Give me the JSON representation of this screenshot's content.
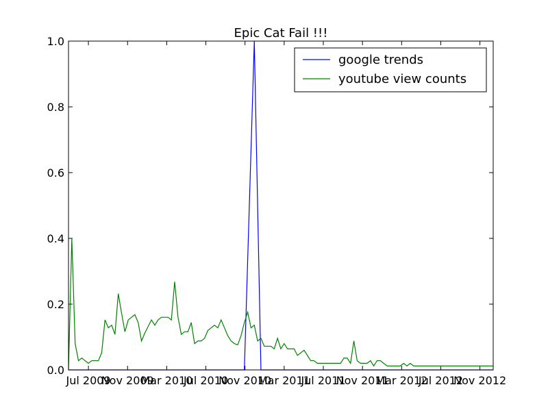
{
  "chart_data": {
    "type": "line",
    "title": "Epic Cat Fail !!!",
    "xlabel": "",
    "ylabel": "",
    "ylim": [
      0,
      1.0
    ],
    "x_ticks": [
      "Jul 2009",
      "Nov 2009",
      "Mar 2010",
      "Jul 2010",
      "Nov 2010",
      "Mar 2011",
      "Jul 2011",
      "Nov 2011",
      "Mar 2012",
      "Jul 2012",
      "Nov 2012"
    ],
    "y_ticks": [
      "0.0",
      "0.2",
      "0.4",
      "0.6",
      "0.8",
      "1.0"
    ],
    "legend_position": "top-right",
    "grid": false,
    "x_domain": [
      0,
      128
    ],
    "series": [
      {
        "name": "google trends",
        "color": "#0000ff",
        "points": [
          [
            0,
            0.0
          ],
          [
            53,
            0.0
          ],
          [
            56,
            1.0
          ],
          [
            58,
            0.0
          ],
          [
            128,
            0.0
          ]
        ]
      },
      {
        "name": "youtube view counts",
        "color": "#008000",
        "points": [
          [
            0,
            0.0
          ],
          [
            1,
            0.4
          ],
          [
            2,
            0.08
          ],
          [
            3,
            0.028
          ],
          [
            4,
            0.036
          ],
          [
            5,
            0.028
          ],
          [
            6,
            0.02
          ],
          [
            7,
            0.028
          ],
          [
            8,
            0.028
          ],
          [
            9,
            0.028
          ],
          [
            10,
            0.052
          ],
          [
            11,
            0.152
          ],
          [
            12,
            0.128
          ],
          [
            13,
            0.136
          ],
          [
            14,
            0.108
          ],
          [
            15,
            0.232
          ],
          [
            16,
            0.172
          ],
          [
            17,
            0.116
          ],
          [
            18,
            0.152
          ],
          [
            19,
            0.16
          ],
          [
            20,
            0.168
          ],
          [
            21,
            0.144
          ],
          [
            22,
            0.088
          ],
          [
            23,
            0.112
          ],
          [
            24,
            0.132
          ],
          [
            25,
            0.152
          ],
          [
            26,
            0.136
          ],
          [
            27,
            0.152
          ],
          [
            28,
            0.16
          ],
          [
            29,
            0.16
          ],
          [
            30,
            0.16
          ],
          [
            31,
            0.152
          ],
          [
            32,
            0.268
          ],
          [
            33,
            0.16
          ],
          [
            34,
            0.108
          ],
          [
            35,
            0.116
          ],
          [
            36,
            0.116
          ],
          [
            37,
            0.144
          ],
          [
            38,
            0.08
          ],
          [
            39,
            0.088
          ],
          [
            40,
            0.088
          ],
          [
            41,
            0.096
          ],
          [
            42,
            0.12
          ],
          [
            43,
            0.128
          ],
          [
            44,
            0.136
          ],
          [
            45,
            0.128
          ],
          [
            46,
            0.152
          ],
          [
            47,
            0.128
          ],
          [
            48,
            0.104
          ],
          [
            49,
            0.088
          ],
          [
            50,
            0.08
          ],
          [
            51,
            0.076
          ],
          [
            52,
            0.104
          ],
          [
            53,
            0.144
          ],
          [
            54,
            0.176
          ],
          [
            55,
            0.128
          ],
          [
            56,
            0.136
          ],
          [
            57,
            0.088
          ],
          [
            58,
            0.096
          ],
          [
            59,
            0.072
          ],
          [
            60,
            0.072
          ],
          [
            61,
            0.072
          ],
          [
            62,
            0.064
          ],
          [
            63,
            0.096
          ],
          [
            64,
            0.064
          ],
          [
            65,
            0.08
          ],
          [
            66,
            0.064
          ],
          [
            67,
            0.064
          ],
          [
            68,
            0.064
          ],
          [
            69,
            0.044
          ],
          [
            70,
            0.052
          ],
          [
            71,
            0.06
          ],
          [
            72,
            0.044
          ],
          [
            73,
            0.028
          ],
          [
            74,
            0.028
          ],
          [
            75,
            0.02
          ],
          [
            76,
            0.02
          ],
          [
            77,
            0.02
          ],
          [
            78,
            0.02
          ],
          [
            79,
            0.02
          ],
          [
            80,
            0.02
          ],
          [
            81,
            0.02
          ],
          [
            82,
            0.02
          ],
          [
            83,
            0.036
          ],
          [
            84,
            0.036
          ],
          [
            85,
            0.02
          ],
          [
            86,
            0.088
          ],
          [
            87,
            0.028
          ],
          [
            88,
            0.02
          ],
          [
            89,
            0.02
          ],
          [
            90,
            0.02
          ],
          [
            91,
            0.028
          ],
          [
            92,
            0.012
          ],
          [
            93,
            0.028
          ],
          [
            94,
            0.028
          ],
          [
            95,
            0.02
          ],
          [
            96,
            0.012
          ],
          [
            97,
            0.012
          ],
          [
            98,
            0.012
          ],
          [
            99,
            0.012
          ],
          [
            100,
            0.012
          ],
          [
            101,
            0.02
          ],
          [
            102,
            0.012
          ],
          [
            103,
            0.02
          ],
          [
            104,
            0.012
          ],
          [
            105,
            0.012
          ],
          [
            106,
            0.012
          ],
          [
            107,
            0.012
          ],
          [
            108,
            0.012
          ],
          [
            109,
            0.012
          ],
          [
            110,
            0.012
          ],
          [
            111,
            0.012
          ],
          [
            112,
            0.012
          ],
          [
            113,
            0.012
          ],
          [
            114,
            0.012
          ],
          [
            115,
            0.012
          ],
          [
            116,
            0.012
          ],
          [
            117,
            0.012
          ],
          [
            118,
            0.012
          ],
          [
            119,
            0.012
          ],
          [
            120,
            0.012
          ],
          [
            121,
            0.012
          ],
          [
            122,
            0.012
          ],
          [
            123,
            0.012
          ],
          [
            124,
            0.012
          ],
          [
            125,
            0.012
          ],
          [
            126,
            0.012
          ],
          [
            127,
            0.012
          ],
          [
            128,
            0.012
          ]
        ]
      }
    ]
  }
}
